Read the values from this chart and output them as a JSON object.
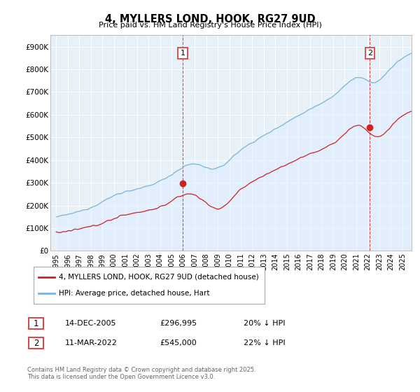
{
  "title": "4, MYLLERS LOND, HOOK, RG27 9UD",
  "subtitle": "Price paid vs. HM Land Registry's House Price Index (HPI)",
  "ylim": [
    0,
    950000
  ],
  "yticks": [
    0,
    100000,
    200000,
    300000,
    400000,
    500000,
    600000,
    700000,
    800000,
    900000
  ],
  "ytick_labels": [
    "£0",
    "£100K",
    "£200K",
    "£300K",
    "£400K",
    "£500K",
    "£600K",
    "£700K",
    "£800K",
    "£900K"
  ],
  "hpi_color": "#7ab4d8",
  "hpi_fill_color": "#ddeeff",
  "price_color": "#cc2222",
  "vline_color": "#dd4444",
  "sale1_year": 2005.96,
  "sale1_val": 296995,
  "sale2_year": 2022.19,
  "sale2_val": 545000,
  "legend_price_label": "4, MYLLERS LOND, HOOK, RG27 9UD (detached house)",
  "legend_hpi_label": "HPI: Average price, detached house, Hart",
  "note1_num": "1",
  "note1_date": "14-DEC-2005",
  "note1_price": "£296,995",
  "note1_hpi": "20% ↓ HPI",
  "note2_num": "2",
  "note2_date": "11-MAR-2022",
  "note2_price": "£545,000",
  "note2_hpi": "22% ↓ HPI",
  "footer": "Contains HM Land Registry data © Crown copyright and database right 2025.\nThis data is licensed under the Open Government Licence v3.0.",
  "background_color": "#ffffff",
  "chart_bg_color": "#e8f0f8",
  "grid_color": "#ffffff"
}
